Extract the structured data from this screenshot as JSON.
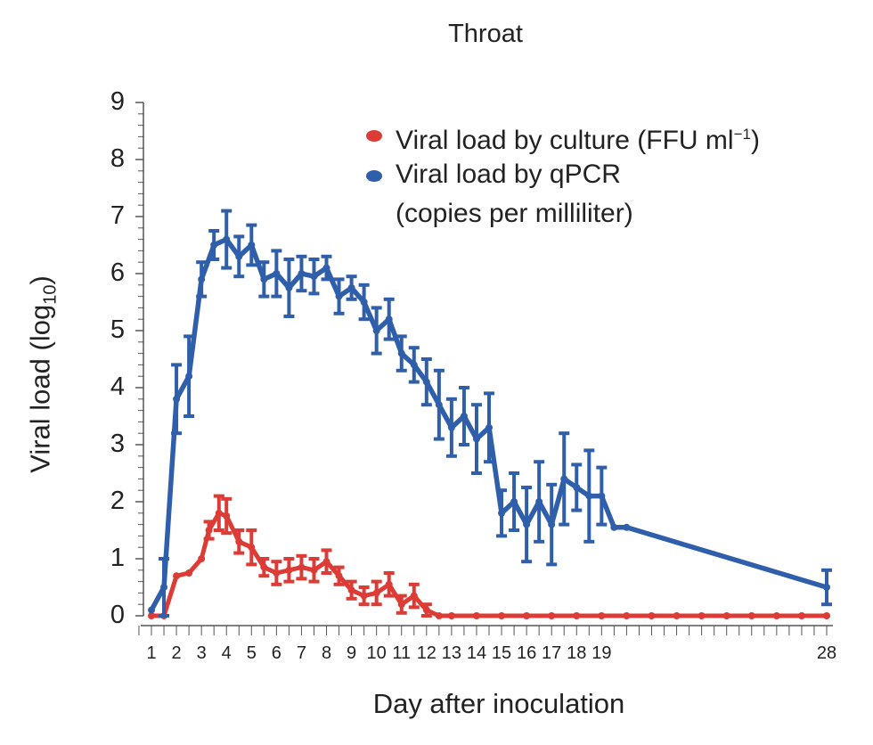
{
  "chart_data": {
    "type": "line",
    "title": "Throat",
    "xlabel": "Day after inoculation",
    "ylabel_main": "Viral load (log",
    "ylabel_sub": "10",
    "ylabel_close": ")",
    "ylim": [
      0,
      9
    ],
    "yticks": [
      0,
      1,
      2,
      3,
      4,
      5,
      6,
      7,
      8,
      9
    ],
    "xticks": [
      1,
      2,
      3,
      4,
      5,
      6,
      7,
      8,
      9,
      10,
      11,
      12,
      13,
      14,
      15,
      16,
      17,
      18,
      19,
      28
    ],
    "grid": false,
    "legend_position": "top-right",
    "series": [
      {
        "name": "Viral load by culture (FFU ml",
        "name_sup": "−1",
        "name_close": ")",
        "color": "#dd3b35",
        "points": [
          {
            "x": 1.0,
            "y": 0.0
          },
          {
            "x": 1.5,
            "y": 0.0
          },
          {
            "x": 2.0,
            "y": 0.7
          },
          {
            "x": 2.5,
            "y": 0.75
          },
          {
            "x": 3.0,
            "y": 1.0
          },
          {
            "x": 3.3,
            "y": 1.5,
            "err": 0.15
          },
          {
            "x": 3.7,
            "y": 1.8,
            "err": 0.3
          },
          {
            "x": 4.0,
            "y": 1.75,
            "err": 0.3
          },
          {
            "x": 4.5,
            "y": 1.3,
            "err": 0.2
          },
          {
            "x": 5.0,
            "y": 1.2,
            "err": 0.3
          },
          {
            "x": 5.5,
            "y": 0.85,
            "err": 0.15
          },
          {
            "x": 6.0,
            "y": 0.75,
            "err": 0.2
          },
          {
            "x": 6.5,
            "y": 0.8,
            "err": 0.2
          },
          {
            "x": 7.0,
            "y": 0.85,
            "err": 0.2
          },
          {
            "x": 7.5,
            "y": 0.8,
            "err": 0.2
          },
          {
            "x": 8.0,
            "y": 0.95,
            "err": 0.2
          },
          {
            "x": 8.5,
            "y": 0.7,
            "err": 0.15
          },
          {
            "x": 9.0,
            "y": 0.45,
            "err": 0.15
          },
          {
            "x": 9.5,
            "y": 0.35,
            "err": 0.15
          },
          {
            "x": 10.0,
            "y": 0.4,
            "err": 0.2
          },
          {
            "x": 10.5,
            "y": 0.55,
            "err": 0.2
          },
          {
            "x": 11.0,
            "y": 0.2,
            "err": 0.15
          },
          {
            "x": 11.5,
            "y": 0.35,
            "err": 0.2
          },
          {
            "x": 12.0,
            "y": 0.1,
            "err": 0.1
          },
          {
            "x": 12.5,
            "y": 0.0
          },
          {
            "x": 13.0,
            "y": 0.0
          },
          {
            "x": 14.0,
            "y": 0.0
          },
          {
            "x": 15.0,
            "y": 0.0
          },
          {
            "x": 16.0,
            "y": 0.0
          },
          {
            "x": 17.0,
            "y": 0.0
          },
          {
            "x": 18.0,
            "y": 0.0
          },
          {
            "x": 19.0,
            "y": 0.0
          },
          {
            "x": 20.0,
            "y": 0.0
          },
          {
            "x": 21.0,
            "y": 0.0
          },
          {
            "x": 22.0,
            "y": 0.0
          },
          {
            "x": 23.0,
            "y": 0.0
          },
          {
            "x": 24.0,
            "y": 0.0
          },
          {
            "x": 25.0,
            "y": 0.0
          },
          {
            "x": 26.0,
            "y": 0.0
          },
          {
            "x": 27.0,
            "y": 0.0
          },
          {
            "x": 28.0,
            "y": 0.0
          }
        ]
      },
      {
        "name": "Viral load by qPCR",
        "name_line2": "(copies per milliliter)",
        "color": "#2f5fab",
        "points": [
          {
            "x": 1.0,
            "y": 0.1
          },
          {
            "x": 1.5,
            "y": 0.5,
            "err": 0.5
          },
          {
            "x": 2.0,
            "y": 3.8,
            "err": 0.6
          },
          {
            "x": 2.5,
            "y": 4.2,
            "err": 0.7
          },
          {
            "x": 3.0,
            "y": 5.9,
            "err": 0.3
          },
          {
            "x": 3.5,
            "y": 6.5,
            "err": 0.25
          },
          {
            "x": 4.0,
            "y": 6.6,
            "err": 0.5
          },
          {
            "x": 4.5,
            "y": 6.3,
            "err": 0.35
          },
          {
            "x": 5.0,
            "y": 6.5,
            "err": 0.35
          },
          {
            "x": 5.5,
            "y": 5.9,
            "err": 0.3
          },
          {
            "x": 6.0,
            "y": 6.0,
            "err": 0.4
          },
          {
            "x": 6.5,
            "y": 5.75,
            "err": 0.5
          },
          {
            "x": 7.0,
            "y": 6.0,
            "err": 0.3
          },
          {
            "x": 7.5,
            "y": 5.95,
            "err": 0.3
          },
          {
            "x": 8.0,
            "y": 6.1,
            "err": 0.2
          },
          {
            "x": 8.5,
            "y": 5.6,
            "err": 0.3
          },
          {
            "x": 9.0,
            "y": 5.75,
            "err": 0.2
          },
          {
            "x": 9.5,
            "y": 5.5,
            "err": 0.3
          },
          {
            "x": 10.0,
            "y": 5.0,
            "err": 0.4
          },
          {
            "x": 10.5,
            "y": 5.2,
            "err": 0.35
          },
          {
            "x": 11.0,
            "y": 4.6,
            "err": 0.3
          },
          {
            "x": 11.5,
            "y": 4.4,
            "err": 0.3
          },
          {
            "x": 12.0,
            "y": 4.1,
            "err": 0.4
          },
          {
            "x": 12.5,
            "y": 3.7,
            "err": 0.6
          },
          {
            "x": 13.0,
            "y": 3.3,
            "err": 0.5
          },
          {
            "x": 13.5,
            "y": 3.5,
            "err": 0.5
          },
          {
            "x": 14.0,
            "y": 3.1,
            "err": 0.6
          },
          {
            "x": 14.5,
            "y": 3.3,
            "err": 0.6
          },
          {
            "x": 15.0,
            "y": 1.8,
            "err": 0.4
          },
          {
            "x": 15.5,
            "y": 2.0,
            "err": 0.5
          },
          {
            "x": 16.0,
            "y": 1.6,
            "err": 0.65
          },
          {
            "x": 16.5,
            "y": 2.0,
            "err": 0.7
          },
          {
            "x": 17.0,
            "y": 1.6,
            "err": 0.7
          },
          {
            "x": 17.5,
            "y": 2.4,
            "err": 0.8
          },
          {
            "x": 18.0,
            "y": 2.25,
            "err": 0.4
          },
          {
            "x": 18.5,
            "y": 2.1,
            "err": 0.8
          },
          {
            "x": 19.0,
            "y": 2.1,
            "err": 0.5
          },
          {
            "x": 19.5,
            "y": 1.55
          },
          {
            "x": 20.0,
            "y": 1.55
          },
          {
            "x": 28.0,
            "y": 0.5,
            "err": 0.3
          }
        ]
      }
    ]
  }
}
